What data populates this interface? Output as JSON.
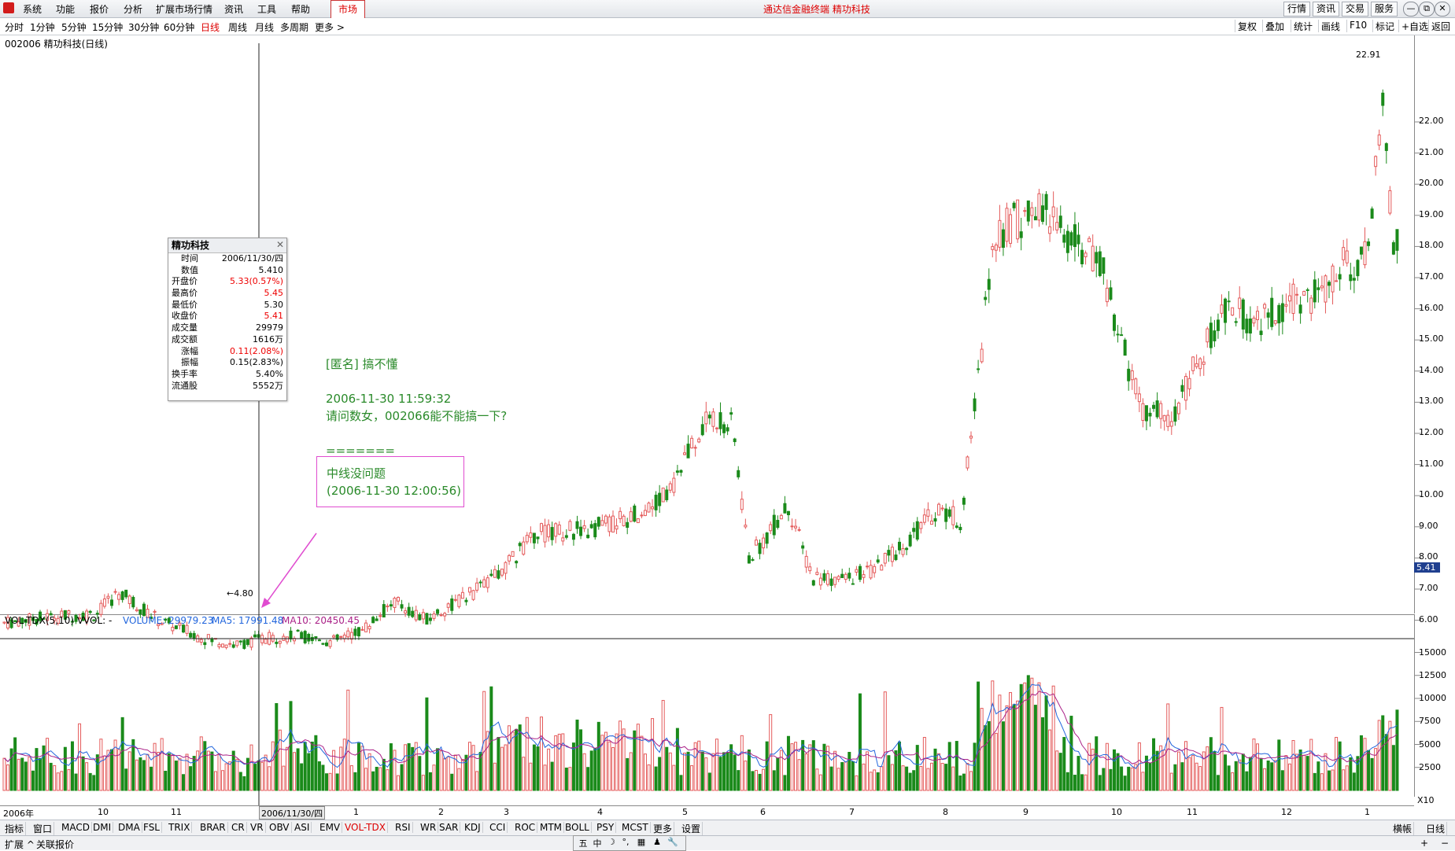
{
  "menu": {
    "items": [
      "系统",
      "功能",
      "报价",
      "分析",
      "扩展市场行情",
      "资讯",
      "工具",
      "帮助"
    ],
    "market_tab": "市场",
    "window_title": "通达信金融终端  精功科技",
    "right_buttons": [
      "行情",
      "资讯",
      "交易",
      "服务"
    ],
    "win_controls": [
      "—",
      "⧉",
      "□",
      "✕"
    ]
  },
  "periods": {
    "items": [
      "分时",
      "1分钟",
      "5分钟",
      "15分钟",
      "30分钟",
      "60分钟",
      "日线",
      "周线",
      "月线",
      "多周期",
      "更多 >"
    ],
    "active_index": 6,
    "tools": [
      "复权",
      "叠加",
      "统计",
      "画线",
      "F10",
      "标记",
      "+自选",
      "返回"
    ]
  },
  "chart": {
    "stock_title": "002006 精功科技(日线)",
    "max_label": "22.91",
    "min_label": "4.80",
    "current_price": "5.41",
    "price_ticks": [
      "22.00",
      "21.00",
      "20.00",
      "19.00",
      "18.00",
      "17.00",
      "16.00",
      "15.00",
      "14.00",
      "13.00",
      "12.00",
      "11.00",
      "10.00",
      "9.00",
      "8.00",
      "7.00",
      "6.00"
    ],
    "volume_ticks": [
      "15000",
      "12500",
      "10000",
      "7500",
      "5000",
      "2500"
    ],
    "volume_unit": "X10",
    "cursor_date": "2006/11/30/四",
    "date_labels": [
      "2006年",
      "10",
      "11",
      "1",
      "2",
      "3",
      "4",
      "5",
      "6",
      "7",
      "8",
      "9",
      "10",
      "11",
      "12",
      "1"
    ],
    "colors": {
      "up": "#e45a5a",
      "down": "#1a8a1a",
      "ma5": "#2266dd",
      "ma10": "#aa2288",
      "accent": "#dd0000"
    }
  },
  "volume_legend": {
    "name": "VOL-TDX(5,10) VVOL: -",
    "volume": "VOLUME: 29979.23",
    "ma5": "MA5: 17991.48",
    "ma10": "MA10: 20450.45"
  },
  "info_box": {
    "title": "精功科技",
    "rows": [
      {
        "label": "时间",
        "value": "2006/11/30/四",
        "red": false,
        "indent": true
      },
      {
        "label": "数值",
        "value": "5.410",
        "red": false,
        "indent": true
      },
      {
        "label": "开盘价",
        "value": "5.33(0.57%)",
        "red": true,
        "indent": false
      },
      {
        "label": "最高价",
        "value": "5.45",
        "red": true,
        "indent": false
      },
      {
        "label": "最低价",
        "value": "5.30",
        "red": false,
        "indent": false
      },
      {
        "label": "收盘价",
        "value": "5.41",
        "red": true,
        "indent": false
      },
      {
        "label": "成交量",
        "value": "29979",
        "red": false,
        "indent": false
      },
      {
        "label": "成交额",
        "value": "1616万",
        "red": false,
        "indent": false
      },
      {
        "label": "涨幅",
        "value": "0.11(2.08%)",
        "red": true,
        "indent": true
      },
      {
        "label": "振幅",
        "value": "0.15(2.83%)",
        "red": false,
        "indent": true
      },
      {
        "label": "换手率",
        "value": "5.40%",
        "red": false,
        "indent": false
      },
      {
        "label": "流通股",
        "value": "5552万",
        "red": false,
        "indent": false
      }
    ]
  },
  "annotation": {
    "author": "[匿名] 搞不懂",
    "timestamp": "2006-11-30 11:59:32",
    "question": "请问数女，002066能不能搞一下?",
    "separator": "=======",
    "reply": "中线没问题",
    "reply_time": "(2006-11-30 12:00:56)"
  },
  "indicators": {
    "items": [
      "指标",
      "窗口",
      "MACD",
      "DMI",
      "DMA",
      "FSL",
      "TRIX",
      "BRAR",
      "CR",
      "VR",
      "OBV",
      "ASI",
      "EMV",
      "VOL-TDX",
      "RSI",
      "WR",
      "SAR",
      "KDJ",
      "CCI",
      "ROC",
      "MTM",
      "BOLL",
      "PSY",
      "MCST",
      "更多",
      "设置"
    ],
    "active": "VOL-TDX",
    "right_items": [
      "横帳",
      "日线"
    ]
  },
  "status": {
    "items": [
      "扩展 ^",
      "关联报价"
    ],
    "ime": [
      "五",
      "中",
      "☽",
      "°,",
      "▦",
      "♟",
      "🔧"
    ],
    "zoom": [
      "+",
      "−"
    ]
  }
}
